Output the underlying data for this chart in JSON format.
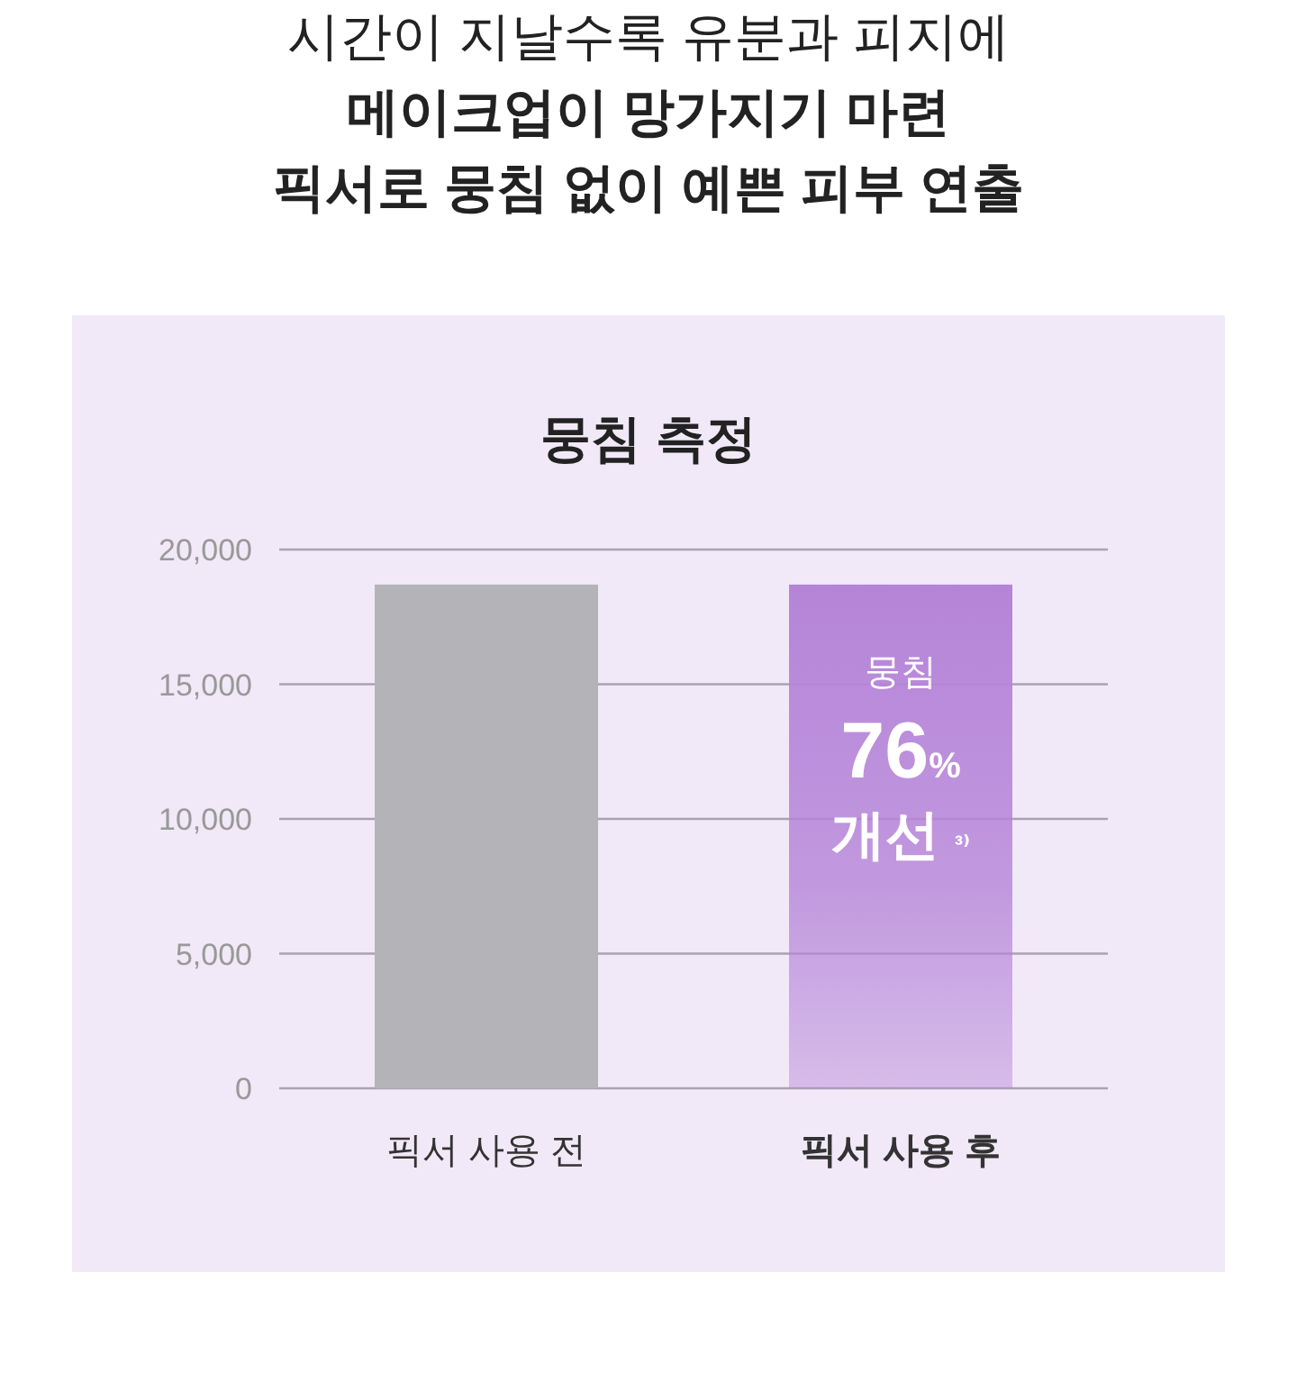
{
  "chart_data": {
    "type": "bar",
    "subtitle": "시간이 지날수록 유분과 피지에\n메이크업이 망가지기 마련\n픽서로 뭉침 없이 예쁜 피부 연출",
    "title": "뭉침 측정",
    "categories": [
      "픽서 사용 전",
      "픽서 사용 후"
    ],
    "values": [
      18700,
      18700
    ],
    "colors": [
      "#b4b4b8",
      "#b584d8"
    ],
    "ylim": [
      0,
      20000
    ],
    "yticks": [
      {
        "value": 0,
        "label": "0"
      },
      {
        "value": 5000,
        "label": "5,000"
      },
      {
        "value": 10000,
        "label": "10,000"
      },
      {
        "value": 15000,
        "label": "15,000"
      },
      {
        "value": 20000,
        "label": "20,000"
      }
    ],
    "grid": "y",
    "annotations": [
      {
        "text": "뭉침\n76%\n개선 ³⁾",
        "x": "픽서 사용 후",
        "y": 18700
      }
    ]
  }
}
